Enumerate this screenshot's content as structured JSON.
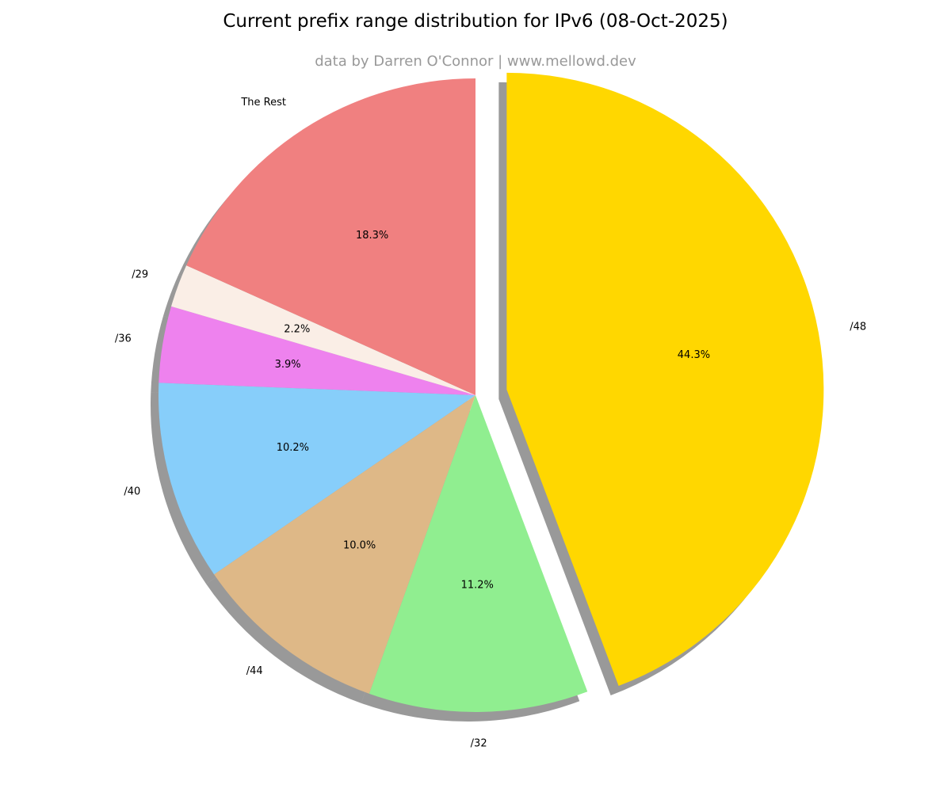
{
  "chart_data": {
    "type": "pie",
    "title": "Current prefix range distribution for IPv6 (08-Oct-2025)",
    "subtitle": "data by Darren O'Connor | www.mellowd.dev",
    "slices": [
      {
        "label": "/48",
        "value": 44.3,
        "pct_label": "44.3%",
        "color": "#ffd700",
        "exploded": true
      },
      {
        "label": "/32",
        "value": 11.2,
        "pct_label": "11.2%",
        "color": "#90ee90"
      },
      {
        "label": "/44",
        "value": 10.0,
        "pct_label": "10.0%",
        "color": "#deb887"
      },
      {
        "label": "/40",
        "value": 10.2,
        "pct_label": "10.2%",
        "color": "#87cefa"
      },
      {
        "label": "/36",
        "value": 3.9,
        "pct_label": "3.9%",
        "color": "#ee82ee"
      },
      {
        "label": "/29",
        "value": 2.2,
        "pct_label": "2.2%",
        "color": "#faeee6"
      },
      {
        "label": "The Rest",
        "value": 18.3,
        "pct_label": "18.3%",
        "color": "#f08080"
      }
    ],
    "shadow": true,
    "start": "top",
    "direction": "clockwise"
  }
}
